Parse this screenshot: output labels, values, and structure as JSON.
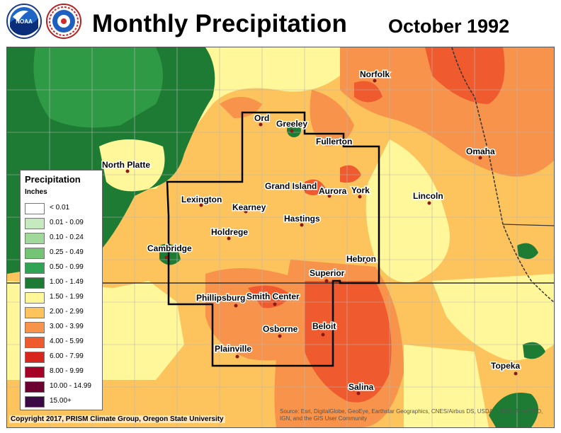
{
  "header": {
    "title": "Monthly Precipitation",
    "date": "October 1992",
    "logos": [
      "noaa-logo",
      "national-weather-service-logo"
    ]
  },
  "legend": {
    "title": "Precipitation",
    "units": "Inches",
    "classes": [
      {
        "label": "< 0.01",
        "color": "#ffffff"
      },
      {
        "label": "0.01 - 0.09",
        "color": "#c7e9c0"
      },
      {
        "label": "0.10 - 0.24",
        "color": "#a1d99b"
      },
      {
        "label": "0.25 - 0.49",
        "color": "#74c476"
      },
      {
        "label": "0.50 - 0.99",
        "color": "#31a354"
      },
      {
        "label": "1.00 - 1.49",
        "color": "#1e7b34"
      },
      {
        "label": "1.50 - 1.99",
        "color": "#fff799"
      },
      {
        "label": "2.00 - 2.99",
        "color": "#fdc35c"
      },
      {
        "label": "3.00 - 3.99",
        "color": "#f7934a"
      },
      {
        "label": "4.00 - 5.99",
        "color": "#ef5a2e"
      },
      {
        "label": "6.00 - 7.99",
        "color": "#d7261e"
      },
      {
        "label": "8.00 - 9.99",
        "color": "#a50026"
      },
      {
        "label": "10.00 - 14.99",
        "color": "#6b0030"
      },
      {
        "label": "15.00+",
        "color": "#3b0a45"
      }
    ]
  },
  "cities": [
    "Ord",
    "Greeley",
    "Fullerton",
    "Norfolk",
    "North Platte",
    "Omaha",
    "Grand Island",
    "Aurora",
    "York",
    "Lincoln",
    "Lexington",
    "Kearney",
    "Hastings",
    "Holdrege",
    "Cambridge",
    "Hebron",
    "Superior",
    "Phillipsburg",
    "Smith Center",
    "Beloit",
    "Osborne",
    "Plainville",
    "Topeka",
    "Salina"
  ],
  "footer": {
    "copyright": "Copyright 2017, PRISM Climate Group, Oregon State University",
    "attribution": "Source: Esri, DigitalGlobe, GeoEye, Earthstar Geographics, CNES/Airbus DS, USDA, USGS, AeroGRID, IGN, and the GIS User Community"
  }
}
